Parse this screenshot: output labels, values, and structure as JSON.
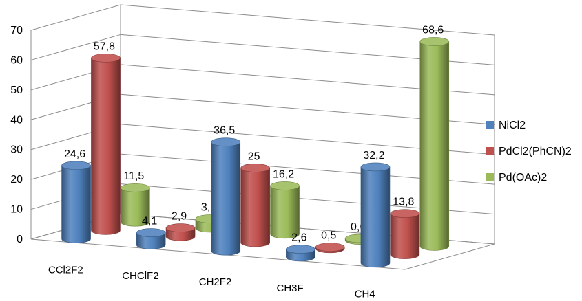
{
  "chart_data": {
    "type": "bar",
    "categories": [
      "CCl2F2",
      "CHClF2",
      "CH2F2",
      "CH3F",
      "CH4"
    ],
    "series": [
      {
        "name": "NiCl2",
        "values": [
          24.6,
          4.1,
          36.5,
          2.6,
          32.2
        ],
        "labels": [
          "24,6",
          "4,1",
          "36,5",
          "2,6",
          "32,2"
        ],
        "color": "#4f81bd"
      },
      {
        "name": "PdCl2(PhCN)2",
        "values": [
          57.8,
          2.9,
          25,
          0.5,
          13.8
        ],
        "labels": [
          "57,8",
          "2,9",
          "25",
          "0,5",
          "13,8"
        ],
        "color": "#c0504d"
      },
      {
        "name": "Pd(OAc)2",
        "values": [
          11.5,
          3.1,
          16.2,
          0.6,
          68.6
        ],
        "labels": [
          "11,5",
          "3,1",
          "16,2",
          "0,6",
          "68,6"
        ],
        "color": "#9bbb59"
      }
    ],
    "ylim": [
      0,
      70
    ],
    "yticks": [
      "0",
      "10",
      "20",
      "30",
      "40",
      "50",
      "60",
      "70"
    ],
    "grid": true,
    "legend_position": "right",
    "style": "3d-cylinder"
  }
}
